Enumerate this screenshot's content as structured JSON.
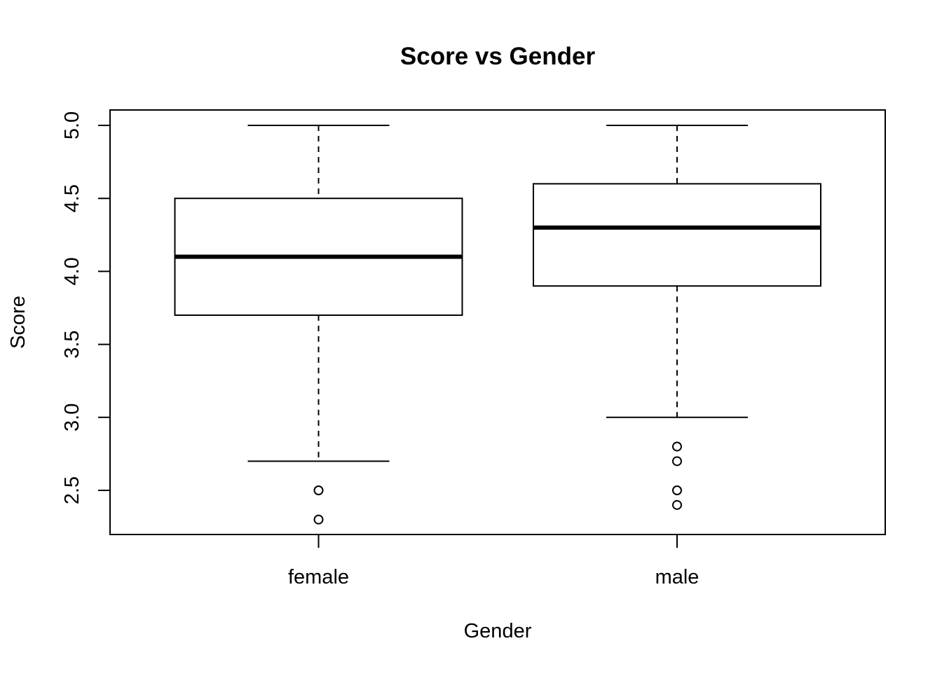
{
  "chart_data": {
    "type": "boxplot",
    "title": "Score vs Gender",
    "xlabel": "Gender",
    "ylabel": "Score",
    "categories": [
      "female",
      "male"
    ],
    "ylim": [
      2.2,
      5.1
    ],
    "y_ticks": [
      2.5,
      3.0,
      3.5,
      4.0,
      4.5,
      5.0
    ],
    "y_tick_labels": [
      "2.5",
      "3.0",
      "3.5",
      "4.0",
      "4.5",
      "5.0"
    ],
    "boxes": [
      {
        "category": "female",
        "whisker_low": 2.7,
        "q1": 3.7,
        "median": 4.1,
        "q3": 4.5,
        "whisker_high": 5.0,
        "outliers": [
          2.5,
          2.3
        ]
      },
      {
        "category": "male",
        "whisker_low": 3.0,
        "q1": 3.9,
        "median": 4.3,
        "q3": 4.6,
        "whisker_high": 5.0,
        "outliers": [
          2.8,
          2.7,
          2.5,
          2.4
        ]
      }
    ],
    "grid": false,
    "legend": "none"
  }
}
